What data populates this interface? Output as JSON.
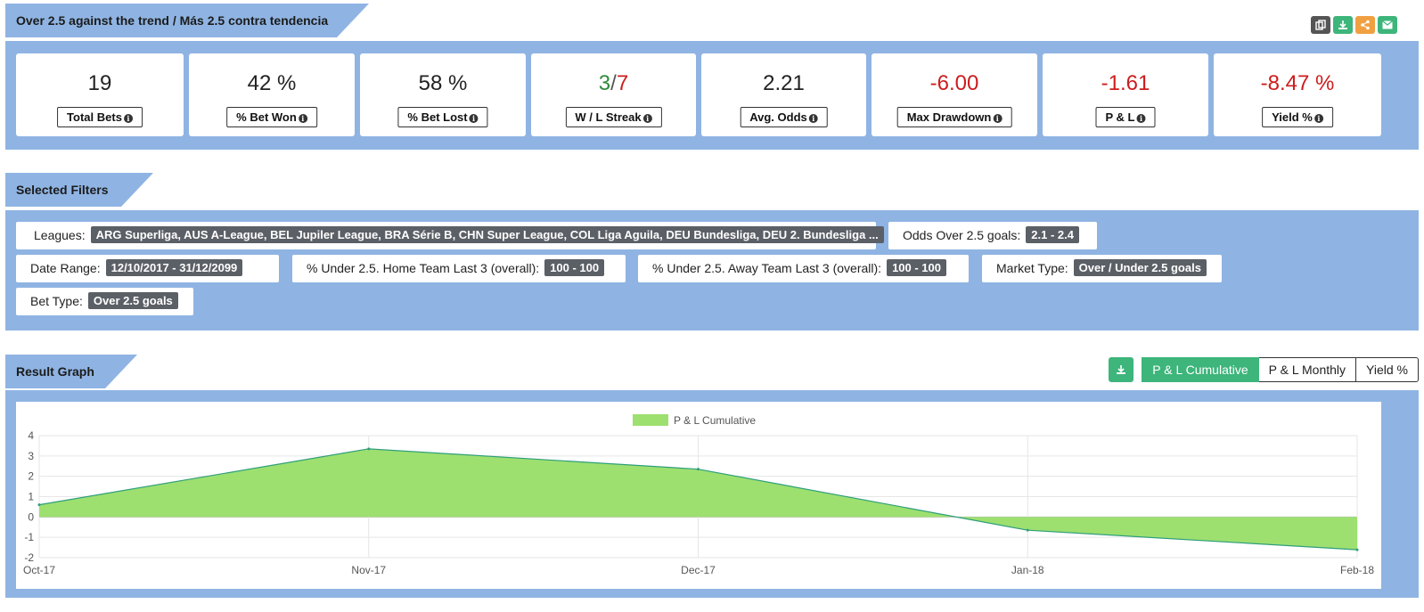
{
  "header": {
    "title": "Over 2.5 against the trend / Más 2.5 contra tendencia",
    "icons": [
      "copy-icon",
      "download-icon",
      "share-icon",
      "email-icon"
    ],
    "icon_colors": [
      "#555555",
      "#3db57b",
      "#f0a040",
      "#3db57b"
    ]
  },
  "stats": [
    {
      "value": "19",
      "label": "Total Bets"
    },
    {
      "value": "42 %",
      "label": "% Bet Won"
    },
    {
      "value": "58 %",
      "label": "% Bet Lost"
    },
    {
      "value_win": "3",
      "value_sep": "/",
      "value_loss": "7",
      "label": "W / L Streak"
    },
    {
      "value": "2.21",
      "label": "Avg. Odds"
    },
    {
      "value": "-6.00",
      "label": "Max Drawdown"
    },
    {
      "value": "-1.61",
      "label": "P & L"
    },
    {
      "value": "-8.47 %",
      "label": "Yield %"
    }
  ],
  "filters": {
    "title": "Selected Filters",
    "items": [
      {
        "label": "Leagues:",
        "value": "ARG Superliga, AUS A-League, BEL Jupiler League, BRA Série B, CHN Super League, COL Liga Aguila, DEU Bundesliga, DEU 2. Bundesliga ..."
      },
      {
        "label": "Odds Over 2.5 goals:",
        "value": "2.1 - 2.4"
      },
      {
        "label": "Date Range:",
        "value": "12/10/2017 - 31/12/2099"
      },
      {
        "label": "% Under 2.5. Home Team Last 3 (overall):",
        "value": "100 - 100"
      },
      {
        "label": "% Under 2.5. Away Team Last 3 (overall):",
        "value": "100 - 100"
      },
      {
        "label": "Market Type:",
        "value": "Over / Under 2.5 goals"
      },
      {
        "label": "Bet Type:",
        "value": "Over 2.5 goals"
      }
    ]
  },
  "graph": {
    "title": "Result Graph",
    "buttons": [
      "P & L Cumulative",
      "P & L Monthly",
      "Yield %"
    ],
    "active_button": "P & L Cumulative"
  },
  "colors": {
    "section_bg": "#8fb4e3",
    "accent_green": "#3db57b",
    "negative": "#cc1d1d",
    "area_fill": "#9de070",
    "area_line": "#2f9e7a"
  },
  "chart_data": {
    "type": "area",
    "categories": [
      "Oct-17",
      "Nov-17",
      "Dec-17",
      "Jan-18",
      "Feb-18"
    ],
    "series": [
      {
        "name": "P & L Cumulative",
        "values": [
          0.6,
          3.35,
          2.35,
          -0.65,
          -1.61
        ]
      }
    ],
    "y_ticks": [
      "4",
      "3",
      "2",
      "1",
      "0",
      "-1",
      "-2"
    ],
    "ylim": [
      -2,
      4
    ],
    "legend": "top-center",
    "grid": true
  }
}
